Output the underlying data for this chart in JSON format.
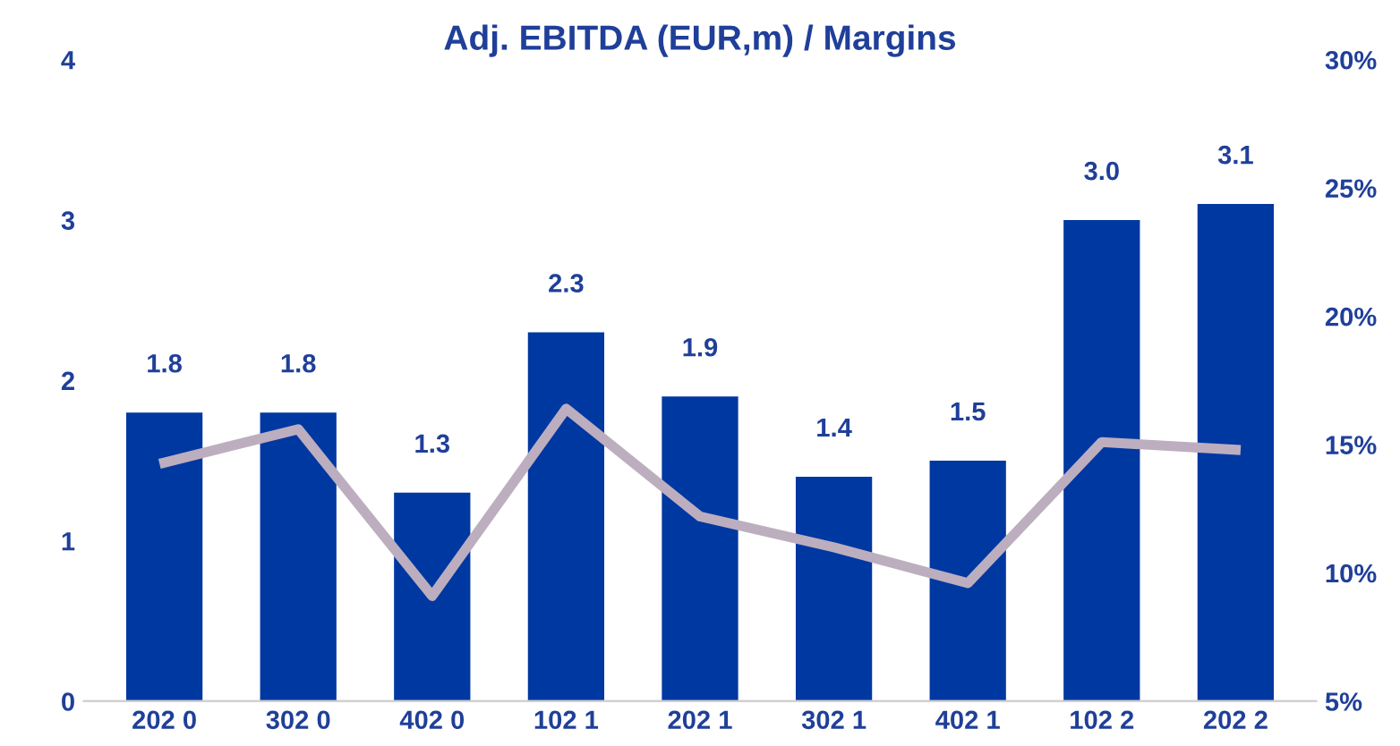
{
  "chart_data": {
    "type": "bar",
    "title": "Adj. EBITDA (EUR,m) / Margins",
    "categories": [
      "202 0",
      "302 0",
      "402 0",
      "102 1",
      "202 1",
      "302 1",
      "402 1",
      "102 2",
      "202 2"
    ],
    "series": [
      {
        "color": "#0038a1",
        "values": [
          1.8,
          1.8,
          1.3,
          2.3,
          1.9,
          1.4,
          1.5,
          3.0,
          3.1
        ],
        "value_labels": [
          "1.8",
          "1.8",
          "1.3",
          "2.3",
          "1.9",
          "1.4",
          "1.5",
          "3.0",
          "3.1"
        ]
      },
      {
        "type": "line",
        "axis": "y2",
        "color": "#bcaebf",
        "values": [
          14.3,
          15.6,
          9.1,
          16.4,
          12.2,
          11.0,
          9.6,
          15.1,
          14.8
        ]
      }
    ],
    "ylim": [
      0,
      4
    ],
    "yticks": [
      0,
      1,
      2,
      3,
      4
    ],
    "y2lim": [
      5,
      30
    ],
    "y2ticks": [
      {
        "value": 5,
        "label": "5%"
      },
      {
        "value": 10,
        "label": "10%"
      },
      {
        "value": 15,
        "label": "15%"
      },
      {
        "value": 20,
        "label": "20%"
      },
      {
        "value": 25,
        "label": "25%"
      },
      {
        "value": 30,
        "label": "30%"
      }
    ],
    "grid": false,
    "legend": false,
    "marker": "none",
    "line_style": "solid"
  }
}
